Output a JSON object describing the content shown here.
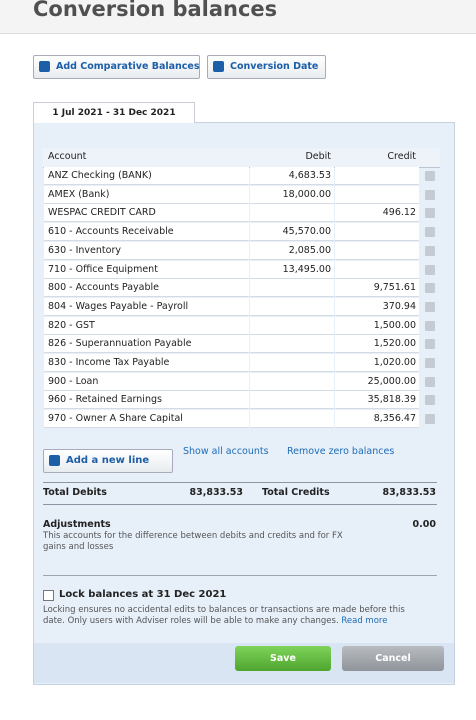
{
  "header": {
    "title": "Conversion balances"
  },
  "toolbar": {
    "add_comparative": "Add Comparative Balances",
    "conversion_date": "Conversion Date"
  },
  "tab": "1 Jul 2021 - 31 Dec 2021",
  "table": {
    "columns": [
      "Account",
      "Debit",
      "Credit"
    ],
    "rows": [
      {
        "account": "ANZ Checking (BANK)",
        "debit": "4,683.53"
      },
      {
        "account": "AMEX (Bank)",
        "debit": "18,000.00"
      },
      {
        "account": "WESPAC CREDIT CARD",
        "credit": "496.12"
      },
      {
        "account": "610 - Accounts Receivable",
        "debit": "45,570.00"
      },
      {
        "account": "630 - Inventory",
        "debit": "2,085.00"
      },
      {
        "account": "710 - Office Equipment",
        "debit": "13,495.00"
      },
      {
        "account": "800 - Accounts Payable",
        "credit": "9,751.61"
      },
      {
        "account": "804 - Wages Payable - Payroll",
        "credit": "370.94"
      },
      {
        "account": "820 - GST",
        "credit": "1,500.00"
      },
      {
        "account": "826 - Superannuation Payable",
        "credit": "1,520.00"
      },
      {
        "account": "830 - Income Tax Payable",
        "credit": "1,020.00"
      },
      {
        "account": "900 - Loan",
        "credit": "25,000.00"
      },
      {
        "account": "960 - Retained Earnings",
        "credit": "35,818.39"
      },
      {
        "account": "970 - Owner A Share Capital",
        "credit": "8,356.47"
      }
    ]
  },
  "actions": {
    "add_line": "Add a new line",
    "show_all": "Show all accounts",
    "remove_zero": "Remove zero balances"
  },
  "totals": {
    "debits_label": "Total Debits",
    "debits": "83,833.53",
    "credits_label": "Total Credits",
    "credits": "83,833.53"
  },
  "adjustments": {
    "label": "Adjustments",
    "value": "0.00",
    "description": "This accounts for the difference between debits and credits and for FX gains and losses"
  },
  "lock": {
    "label": "Lock balances at 31 Dec 2021",
    "description": "Locking ensures no accidental edits to balances or transactions are made before this date. Only users with Adviser roles will be able to make any changes.",
    "link": "Read more"
  },
  "buttons": {
    "save": "Save",
    "cancel": "Cancel"
  }
}
